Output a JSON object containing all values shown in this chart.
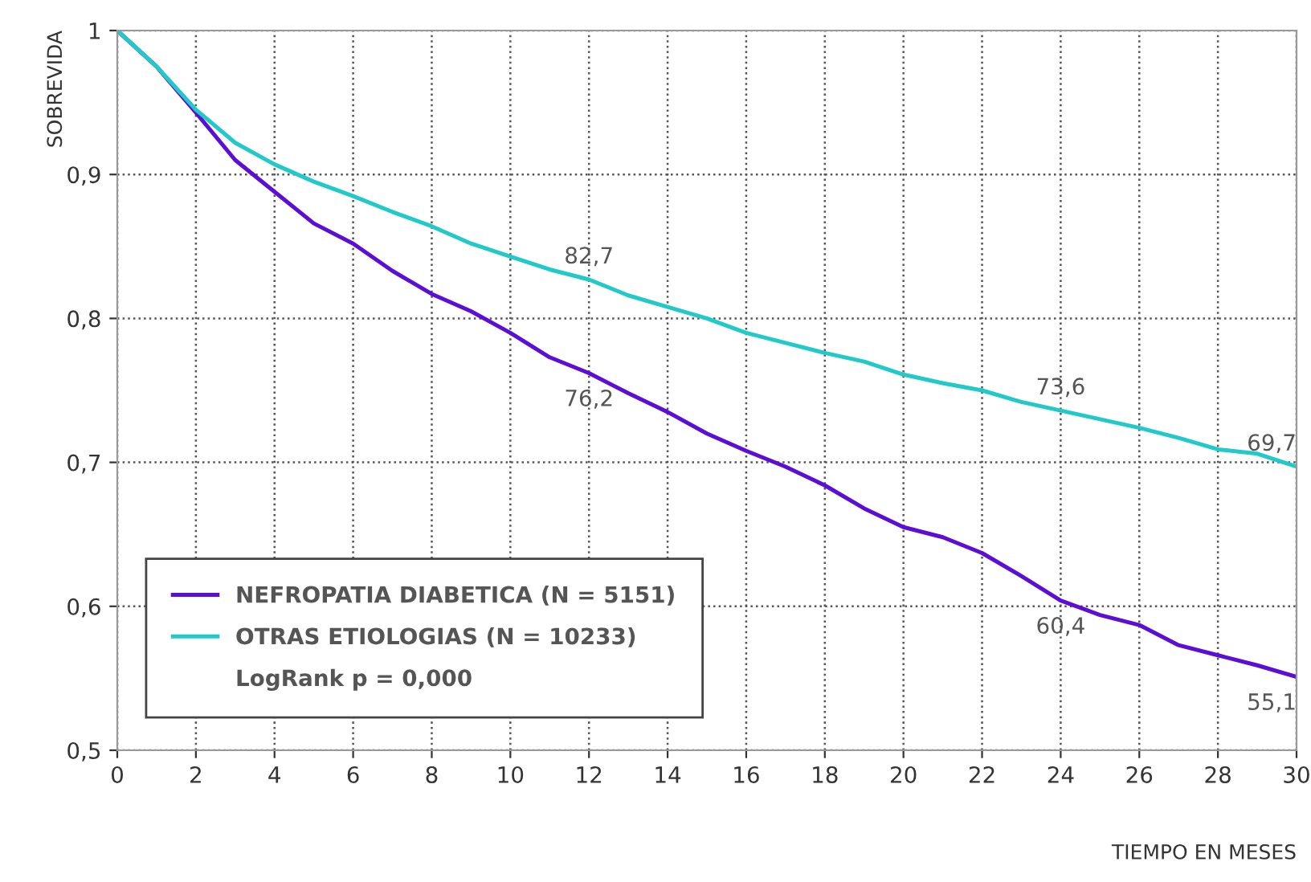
{
  "chart_data": {
    "type": "line",
    "xlabel": "TIEMPO EN MESES",
    "ylabel": "SOBREVIDA",
    "x": [
      0,
      1,
      2,
      3,
      4,
      5,
      6,
      7,
      8,
      9,
      10,
      11,
      12,
      13,
      14,
      15,
      16,
      17,
      18,
      19,
      20,
      21,
      22,
      23,
      24,
      25,
      26,
      27,
      28,
      29,
      30
    ],
    "series": [
      {
        "name": "NEFROPATIA DIABETICA (N = 5151)",
        "color": "#5b0fd6",
        "values": [
          1.0,
          0.975,
          0.943,
          0.91,
          0.888,
          0.866,
          0.852,
          0.833,
          0.817,
          0.805,
          0.79,
          0.773,
          0.762,
          0.748,
          0.735,
          0.72,
          0.708,
          0.697,
          0.684,
          0.668,
          0.655,
          0.648,
          0.637,
          0.621,
          0.604,
          0.594,
          0.587,
          0.573,
          0.566,
          0.559,
          0.551
        ]
      },
      {
        "name": "OTRAS ETIOLOGIAS (N = 10233)",
        "color": "#21c9c9",
        "values": [
          1.0,
          0.975,
          0.945,
          0.922,
          0.907,
          0.895,
          0.885,
          0.874,
          0.864,
          0.852,
          0.843,
          0.834,
          0.827,
          0.816,
          0.808,
          0.8,
          0.79,
          0.783,
          0.776,
          0.77,
          0.761,
          0.755,
          0.75,
          0.742,
          0.736,
          0.73,
          0.724,
          0.717,
          0.709,
          0.706,
          0.697
        ]
      }
    ],
    "annotations": [
      {
        "text": "82,7",
        "x": 12,
        "y": 0.827
      },
      {
        "text": "73,6",
        "x": 24,
        "y": 0.736
      },
      {
        "text": "69,7",
        "x": 30,
        "y": 0.697
      },
      {
        "text": "76,2",
        "x": 12,
        "y": 0.762
      },
      {
        "text": "60,4",
        "x": 24,
        "y": 0.604
      },
      {
        "text": "55,1",
        "x": 30,
        "y": 0.551
      },
      "LogRank p = 0,000"
    ],
    "xlim": [
      0,
      30
    ],
    "xticks": [
      0,
      2,
      4,
      6,
      8,
      10,
      12,
      14,
      16,
      18,
      20,
      22,
      24,
      26,
      28,
      30
    ],
    "ylim": [
      0.5,
      1
    ],
    "yticks": [
      {
        "value": 0.5,
        "label": "0,5"
      },
      {
        "value": 0.6,
        "label": "0,6"
      },
      {
        "value": 0.7,
        "label": "0,7"
      },
      {
        "value": 0.8,
        "label": "0,8"
      },
      {
        "value": 0.9,
        "label": "0,9"
      },
      {
        "value": 1,
        "label": "1"
      }
    ],
    "grid": true,
    "legend": "bottom left",
    "line_style": "solid"
  }
}
